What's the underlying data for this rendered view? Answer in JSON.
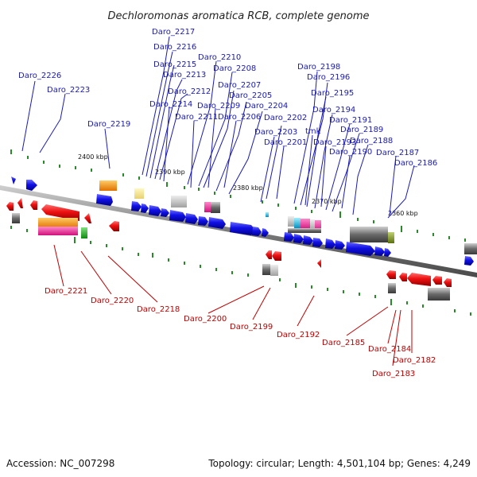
{
  "title": "Dechloromonas aromatica RCB, complete genome",
  "footer": {
    "accession": "Accession: NC_007298",
    "topology": "Topology: circular; Length: 4,501,104 bp; Genes: 4,249"
  },
  "kbp_labels": [
    "2400 kbp",
    "2390 kbp",
    "2380 kbp",
    "2370 kbp",
    "2360 kbp"
  ],
  "top_genes": [
    "Daro_2217",
    "Daro_2216",
    "Daro_2215",
    "Daro_2213",
    "Daro_2212",
    "Daro_2214",
    "Daro_2226",
    "Daro_2223",
    "Daro_2219",
    "Daro_2210",
    "Daro_2208",
    "Daro_2207",
    "Daro_2205",
    "Daro_2209",
    "Daro_2204",
    "Daro_2211",
    "Daro_2206",
    "Daro_2202",
    "Daro_2203",
    "Daro_2201",
    "Daro_2198",
    "Daro_2196",
    "Daro_2195",
    "Daro_2194",
    "Daro_2191",
    "Daro_2189",
    "Daro_2188",
    "Daro_2187",
    "Daro_2186",
    "Daro_2193",
    "Daro_2190",
    "tmk"
  ],
  "bottom_genes": [
    "Daro_2221",
    "Daro_2220",
    "Daro_2218",
    "Daro_2200",
    "Daro_2199",
    "Daro_2192",
    "Daro_2185",
    "Daro_2184",
    "Daro_2182",
    "Daro_2183"
  ],
  "colors": {
    "forward_genes": "#1010e0",
    "reverse_genes": "#e81010",
    "top_label": "#1a1ab4",
    "bottom_label": "#c00000",
    "backbone": "#8a8a8a",
    "ticks": "#2a8a2a"
  }
}
